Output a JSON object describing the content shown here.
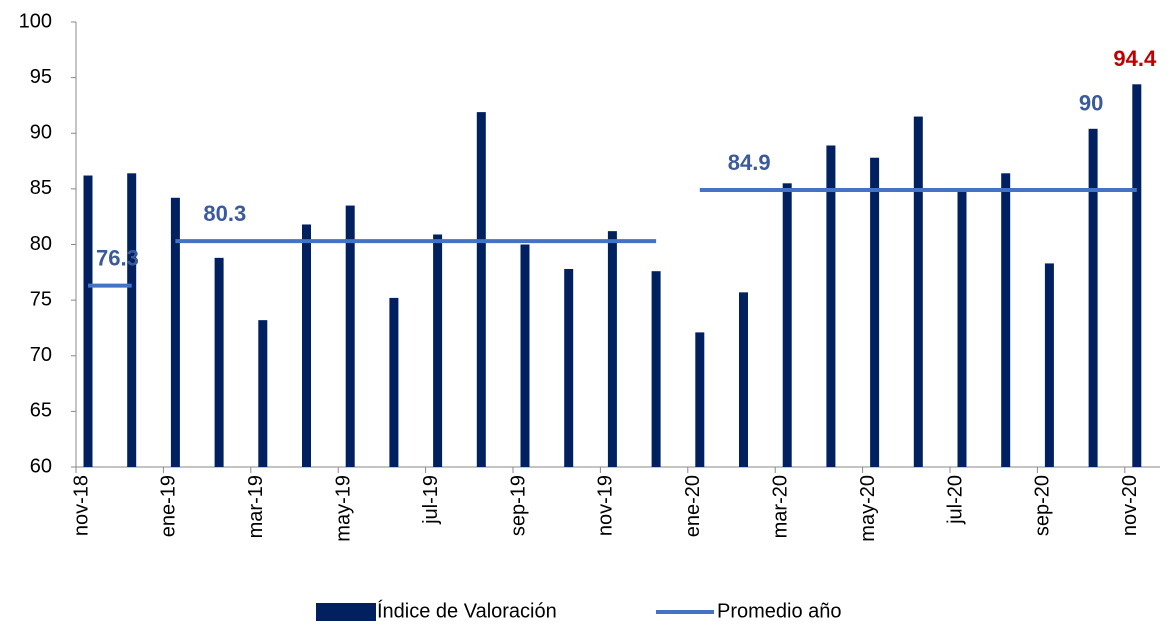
{
  "chart_data": {
    "type": "bar",
    "categories": [
      "nov-18",
      null,
      "ene-19",
      null,
      "mar-19",
      null,
      "may-19",
      null,
      "jul-19",
      null,
      "sep-19",
      null,
      "nov-19",
      null,
      "ene-20",
      null,
      "mar-20",
      null,
      "may-20",
      null,
      "jul-20",
      null,
      "sep-20",
      null,
      "nov-20"
    ],
    "series": [
      {
        "name": "Índice de Valoración",
        "color": "#002060",
        "type": "bar",
        "values": [
          86.2,
          86.4,
          84.2,
          78.8,
          73.2,
          81.8,
          83.5,
          75.2,
          80.9,
          91.9,
          80.0,
          77.8,
          81.2,
          77.6,
          72.1,
          75.7,
          85.5,
          88.9,
          87.8,
          91.5,
          84.9,
          86.4,
          78.3,
          90.4,
          94.4
        ],
        "value_labels": [
          null,
          null,
          null,
          null,
          null,
          null,
          null,
          null,
          null,
          null,
          null,
          null,
          null,
          null,
          null,
          null,
          null,
          null,
          null,
          null,
          null,
          null,
          null,
          "90",
          "94.4"
        ],
        "value_label_colors": [
          null,
          null,
          null,
          null,
          null,
          null,
          null,
          null,
          null,
          null,
          null,
          null,
          null,
          null,
          null,
          null,
          null,
          null,
          null,
          null,
          null,
          null,
          null,
          "#3a5a9c",
          "#c00000"
        ]
      },
      {
        "name": "Promedio año",
        "color": "#4472c4",
        "type": "line",
        "label_color": "#3a5a9c",
        "values": [
          76.3,
          76.3,
          80.3,
          80.3,
          80.3,
          80.3,
          80.3,
          80.3,
          80.3,
          80.3,
          80.3,
          80.3,
          80.3,
          80.3,
          84.9,
          84.9,
          84.9,
          84.9,
          84.9,
          84.9,
          84.9,
          84.9,
          84.9,
          84.9,
          84.9
        ]
      }
    ],
    "ylim": [
      60,
      100
    ],
    "yticks": [
      60,
      65,
      70,
      75,
      80,
      85,
      90,
      95,
      100
    ],
    "legend": "bottom"
  }
}
